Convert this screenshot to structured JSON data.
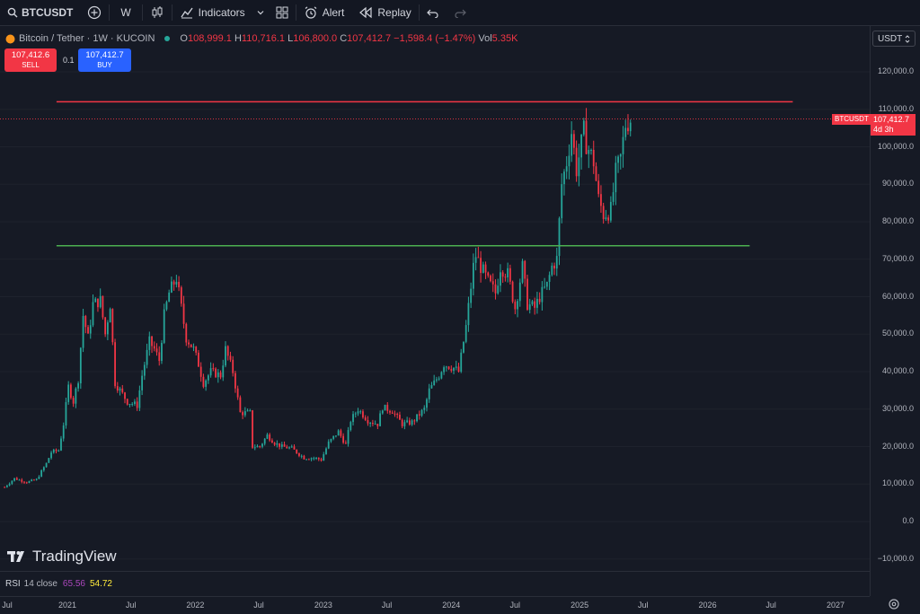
{
  "toolbar": {
    "symbol": "BTCUSDT",
    "interval": "W",
    "indicators_label": "Indicators",
    "alert_label": "Alert",
    "replay_label": "Replay"
  },
  "legend": {
    "title": "Bitcoin / Tether · 1W · KUCOIN",
    "open_key": "O",
    "open": "108,999.1",
    "high_key": "H",
    "high": "110,716.1",
    "low_key": "L",
    "low": "106,800.0",
    "close_key": "C",
    "close": "107,412.7",
    "change": "−1,598.4 (−1.47%)",
    "vol_key": "Vol",
    "vol": "5.35K"
  },
  "trade": {
    "sell_price": "107,412.6",
    "sell_label": "SELL",
    "spread": "0.1",
    "buy_price": "107,412.7",
    "buy_label": "BUY"
  },
  "currency": {
    "value": "USDT"
  },
  "price_axis": [
    "120,000.0",
    "110,000.0",
    "100,000.0",
    "90,000.0",
    "80,000.0",
    "70,000.0",
    "60,000.0",
    "50,000.0",
    "40,000.0",
    "30,000.0",
    "20,000.0",
    "10,000.0",
    "0.0",
    "−10,000.0"
  ],
  "last_price": {
    "symbol": "BTCUSDT",
    "price": "107,412.7",
    "countdown": "4d 3h"
  },
  "time_axis": [
    "Jul",
    "2021",
    "Jul",
    "2022",
    "Jul",
    "2023",
    "Jul",
    "2024",
    "Jul",
    "2025",
    "Jul",
    "2026",
    "Jul",
    "2027"
  ],
  "rsi": {
    "label": "RSI",
    "params": "14 close",
    "value1": "65.56",
    "value2": "54.72"
  },
  "watermark": "TradingView",
  "colors": {
    "up": "#26a69a",
    "down": "#f23645",
    "resistance": "#f23645",
    "support": "#4caf50",
    "background": "#161a25"
  },
  "chart_data": {
    "type": "candlestick",
    "title": "Bitcoin / Tether · 1W · KUCOIN",
    "ylim": [
      -10000,
      120000
    ],
    "xlim": [
      "2020-07",
      "2027-07"
    ],
    "horizontal_lines": [
      {
        "kind": "resistance",
        "value": 112000,
        "from": "2020-12",
        "to": "2026-09"
      },
      {
        "kind": "support",
        "value": 73600,
        "from": "2020-12",
        "to": "2026-05"
      }
    ],
    "closes": [
      [
        "2020-07-06",
        9200
      ],
      [
        "2020-08-03",
        11500
      ],
      [
        "2020-09-07",
        10500
      ],
      [
        "2020-10-05",
        11200
      ],
      [
        "2020-11-02",
        15500
      ],
      [
        "2020-11-16",
        18500
      ],
      [
        "2020-12-07",
        19000
      ],
      [
        "2020-12-21",
        26000
      ],
      [
        "2021-01-04",
        36000
      ],
      [
        "2021-01-18",
        32000
      ],
      [
        "2021-02-01",
        38000
      ],
      [
        "2021-02-15",
        55000
      ],
      [
        "2021-03-01",
        49000
      ],
      [
        "2021-03-15",
        58000
      ],
      [
        "2021-04-05",
        59000
      ],
      [
        "2021-04-19",
        50000
      ],
      [
        "2021-05-03",
        58000
      ],
      [
        "2021-05-17",
        37000
      ],
      [
        "2021-05-31",
        35000
      ],
      [
        "2021-06-21",
        32000
      ],
      [
        "2021-07-19",
        31000
      ],
      [
        "2021-08-02",
        39000
      ],
      [
        "2021-08-23",
        48000
      ],
      [
        "2021-09-06",
        46000
      ],
      [
        "2021-09-20",
        43000
      ],
      [
        "2021-10-04",
        55000
      ],
      [
        "2021-10-18",
        61000
      ],
      [
        "2021-11-08",
        65000
      ],
      [
        "2021-11-22",
        57000
      ],
      [
        "2021-12-06",
        49000
      ],
      [
        "2021-12-27",
        46000
      ],
      [
        "2022-01-10",
        42000
      ],
      [
        "2022-01-24",
        37000
      ],
      [
        "2022-02-14",
        40000
      ],
      [
        "2022-03-14",
        39000
      ],
      [
        "2022-03-28",
        46000
      ],
      [
        "2022-04-18",
        40000
      ],
      [
        "2022-05-09",
        29000
      ],
      [
        "2022-06-06",
        29000
      ],
      [
        "2022-06-13",
        20000
      ],
      [
        "2022-07-04",
        20000
      ],
      [
        "2022-07-25",
        23000
      ],
      [
        "2022-08-15",
        21000
      ],
      [
        "2022-09-05",
        20000
      ],
      [
        "2022-10-03",
        19500
      ],
      [
        "2022-11-07",
        17000
      ],
      [
        "2022-12-05",
        17000
      ],
      [
        "2022-12-26",
        16500
      ],
      [
        "2023-01-16",
        21000
      ],
      [
        "2023-02-13",
        24000
      ],
      [
        "2023-03-06",
        20500
      ],
      [
        "2023-03-20",
        27000
      ],
      [
        "2023-04-10",
        30000
      ],
      [
        "2023-05-08",
        27000
      ],
      [
        "2023-06-05",
        26000
      ],
      [
        "2023-06-19",
        30500
      ],
      [
        "2023-07-17",
        29500
      ],
      [
        "2023-08-14",
        26000
      ],
      [
        "2023-09-11",
        26500
      ],
      [
        "2023-10-16",
        30000
      ],
      [
        "2023-10-30",
        35000
      ],
      [
        "2023-11-27",
        39000
      ],
      [
        "2023-12-11",
        42000
      ],
      [
        "2024-01-08",
        41000
      ],
      [
        "2024-01-22",
        40000
      ],
      [
        "2024-02-12",
        52000
      ],
      [
        "2024-03-04",
        68000
      ],
      [
        "2024-03-11",
        71000
      ],
      [
        "2024-03-25",
        68000
      ],
      [
        "2024-04-15",
        64000
      ],
      [
        "2024-05-06",
        61000
      ],
      [
        "2024-05-20",
        68000
      ],
      [
        "2024-06-10",
        66000
      ],
      [
        "2024-07-01",
        57000
      ],
      [
        "2024-07-22",
        68000
      ],
      [
        "2024-08-05",
        58000
      ],
      [
        "2024-08-26",
        57000
      ],
      [
        "2024-09-09",
        60000
      ],
      [
        "2024-09-30",
        63000
      ],
      [
        "2024-10-14",
        68000
      ],
      [
        "2024-10-28",
        70000
      ],
      [
        "2024-11-11",
        90000
      ],
      [
        "2024-11-25",
        96000
      ],
      [
        "2024-12-09",
        104000
      ],
      [
        "2024-12-23",
        94000
      ],
      [
        "2025-01-13",
        104000
      ],
      [
        "2025-01-20",
        101000
      ],
      [
        "2025-02-10",
        96000
      ],
      [
        "2025-02-24",
        86000
      ],
      [
        "2025-03-10",
        82000
      ],
      [
        "2025-03-31",
        83000
      ],
      [
        "2025-04-14",
        93000
      ],
      [
        "2025-04-28",
        97000
      ],
      [
        "2025-05-12",
        106000
      ],
      [
        "2025-05-26",
        107412.7
      ]
    ]
  }
}
